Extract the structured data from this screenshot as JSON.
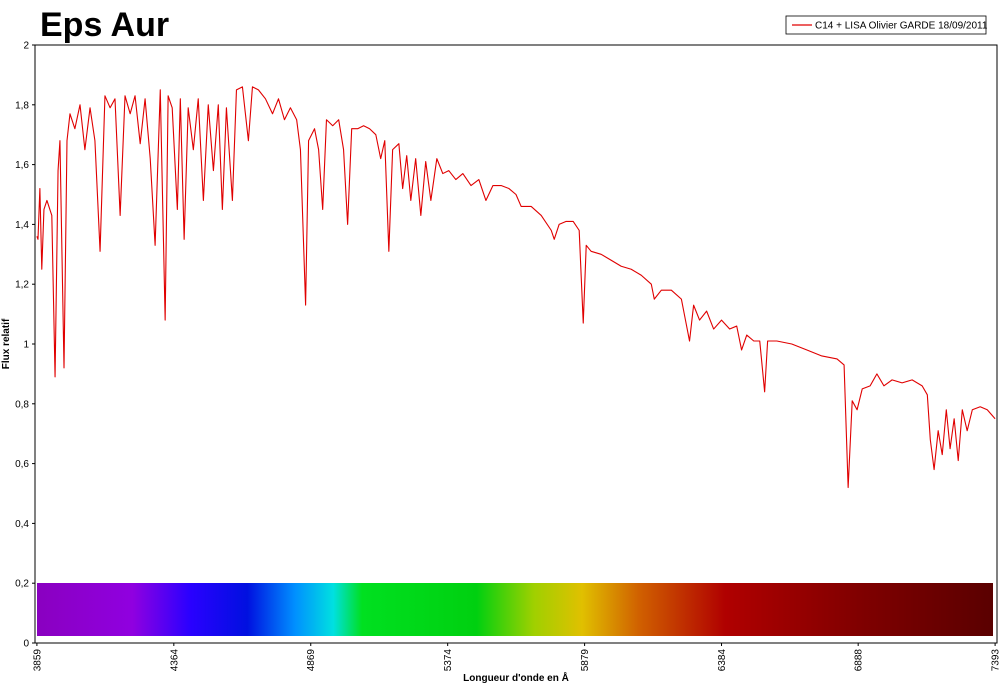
{
  "chart_data": {
    "type": "line",
    "title": "Eps Aur",
    "x_label": "Longueur d'onde en Å",
    "y_label": "Flux relatif",
    "xlim": [
      3852,
      7400
    ],
    "ylim": [
      0,
      2
    ],
    "xticks": [
      3859,
      4364,
      4869,
      5374,
      5879,
      6384,
      6888,
      7393
    ],
    "yticks": [
      0,
      {
        "value": 0.2,
        "label": "0,2"
      },
      {
        "value": 0.4,
        "label": "0,4"
      },
      {
        "value": 0.6,
        "label": "0,6"
      },
      {
        "value": 0.8,
        "label": "0,8"
      },
      1,
      {
        "value": 1.2,
        "label": "1,2"
      },
      {
        "value": 1.4,
        "label": "1,4"
      },
      {
        "value": 1.6,
        "label": "1,6"
      },
      {
        "value": 1.8,
        "label": "1,8"
      },
      2
    ],
    "grid": false,
    "legend": "top-right",
    "x": [
      3859,
      3863,
      3870,
      3877,
      3885,
      3896,
      3914,
      3926,
      3937,
      3944,
      3959,
      3970,
      3981,
      3999,
      4018,
      4036,
      4055,
      4073,
      4092,
      4110,
      4129,
      4147,
      4166,
      4184,
      4203,
      4221,
      4240,
      4258,
      4277,
      4295,
      4314,
      4332,
      4343,
      4358,
      4377,
      4388,
      4402,
      4417,
      4436,
      4454,
      4473,
      4491,
      4510,
      4528,
      4543,
      4558,
      4580,
      4595,
      4617,
      4639,
      4654,
      4676,
      4702,
      4728,
      4750,
      4772,
      4794,
      4817,
      4831,
      4850,
      4861,
      4883,
      4898,
      4913,
      4927,
      4950,
      4972,
      4990,
      5005,
      5020,
      5042,
      5064,
      5086,
      5109,
      5127,
      5142,
      5157,
      5171,
      5194,
      5208,
      5223,
      5238,
      5256,
      5275,
      5293,
      5312,
      5334,
      5356,
      5378,
      5404,
      5430,
      5460,
      5489,
      5515,
      5541,
      5571,
      5600,
      5626,
      5645,
      5682,
      5719,
      5756,
      5767,
      5785,
      5811,
      5837,
      5859,
      5874,
      5885,
      5903,
      5940,
      5977,
      6014,
      6051,
      6088,
      6125,
      6136,
      6162,
      6199,
      6236,
      6251,
      6266,
      6281,
      6303,
      6329,
      6355,
      6384,
      6414,
      6440,
      6458,
      6477,
      6503,
      6525,
      6543,
      6554,
      6588,
      6643,
      6699,
      6754,
      6810,
      6836,
      6851,
      6866,
      6884,
      6903,
      6932,
      6957,
      6983,
      7013,
      7050,
      7087,
      7124,
      7143,
      7154,
      7168,
      7183,
      7198,
      7213,
      7227,
      7242,
      7257,
      7272,
      7290,
      7309,
      7338,
      7364,
      7393
    ],
    "series": [
      {
        "name": "C14 + LISA Olivier GARDE 18/09/2011",
        "color": "#e00000",
        "values": [
          1.36,
          1.35,
          1.52,
          1.25,
          1.45,
          1.48,
          1.43,
          0.89,
          1.58,
          1.68,
          0.92,
          1.68,
          1.77,
          1.72,
          1.8,
          1.65,
          1.79,
          1.68,
          1.31,
          1.83,
          1.79,
          1.82,
          1.43,
          1.83,
          1.77,
          1.83,
          1.67,
          1.82,
          1.62,
          1.33,
          1.85,
          1.08,
          1.83,
          1.79,
          1.45,
          1.82,
          1.35,
          1.79,
          1.65,
          1.82,
          1.48,
          1.8,
          1.58,
          1.8,
          1.45,
          1.79,
          1.48,
          1.85,
          1.86,
          1.68,
          1.86,
          1.85,
          1.82,
          1.77,
          1.82,
          1.75,
          1.79,
          1.75,
          1.65,
          1.13,
          1.68,
          1.72,
          1.65,
          1.45,
          1.75,
          1.73,
          1.75,
          1.65,
          1.4,
          1.72,
          1.72,
          1.73,
          1.72,
          1.7,
          1.62,
          1.68,
          1.31,
          1.65,
          1.67,
          1.52,
          1.63,
          1.48,
          1.62,
          1.43,
          1.61,
          1.48,
          1.62,
          1.57,
          1.58,
          1.55,
          1.57,
          1.53,
          1.55,
          1.48,
          1.53,
          1.53,
          1.52,
          1.5,
          1.46,
          1.46,
          1.43,
          1.38,
          1.35,
          1.4,
          1.41,
          1.41,
          1.38,
          1.07,
          1.33,
          1.31,
          1.3,
          1.28,
          1.26,
          1.25,
          1.23,
          1.2,
          1.15,
          1.18,
          1.18,
          1.15,
          1.08,
          1.01,
          1.13,
          1.08,
          1.11,
          1.05,
          1.08,
          1.05,
          1.06,
          0.98,
          1.03,
          1.01,
          1.01,
          0.84,
          1.01,
          1.01,
          1.0,
          0.98,
          0.96,
          0.95,
          0.93,
          0.52,
          0.81,
          0.78,
          0.85,
          0.86,
          0.9,
          0.86,
          0.88,
          0.87,
          0.88,
          0.86,
          0.83,
          0.68,
          0.58,
          0.71,
          0.63,
          0.78,
          0.65,
          0.75,
          0.61,
          0.78,
          0.71,
          0.78,
          0.79,
          0.78,
          0.75
        ]
      }
    ]
  }
}
